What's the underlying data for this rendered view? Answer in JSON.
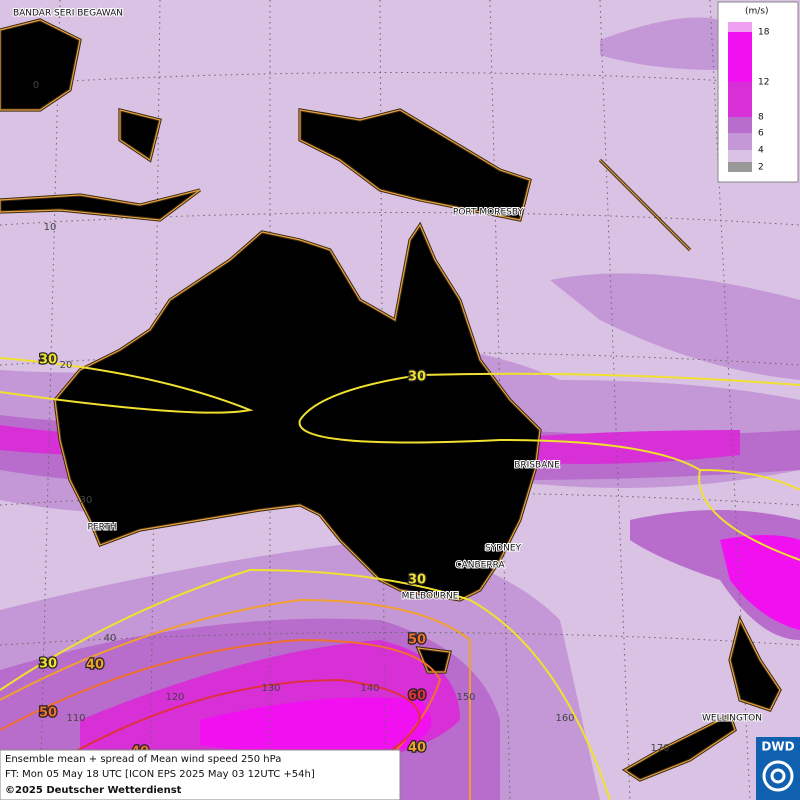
{
  "map": {
    "cities": [
      "BANDAR SERI BEGAWAN",
      "PORT MORESBY",
      "PERTH",
      "BRISBANE",
      "SYDNEY",
      "CANBERRA",
      "MELBOURNE",
      "WELLINGTON"
    ],
    "latitudes": [
      "0",
      "10",
      "20",
      "30",
      "40"
    ],
    "longitudes": [
      "110",
      "120",
      "130",
      "140",
      "150",
      "160",
      "170"
    ],
    "contour_labels": [
      "30",
      "30",
      "30",
      "30",
      "40",
      "40",
      "50",
      "50",
      "60",
      "40"
    ],
    "legend": {
      "unit": "(m/s)",
      "levels": [
        "18",
        "12",
        "8",
        "6",
        "4",
        "2"
      ]
    },
    "footer": [
      "Ensemble mean + spread of Mean wind speed 250 hPa",
      "FT: Mon 05 May 18 UTC [ICON EPS 2025 May 03 12UTC +54h]",
      "©2025 Deutscher Wetterdienst"
    ],
    "logo": "DWD"
  }
}
